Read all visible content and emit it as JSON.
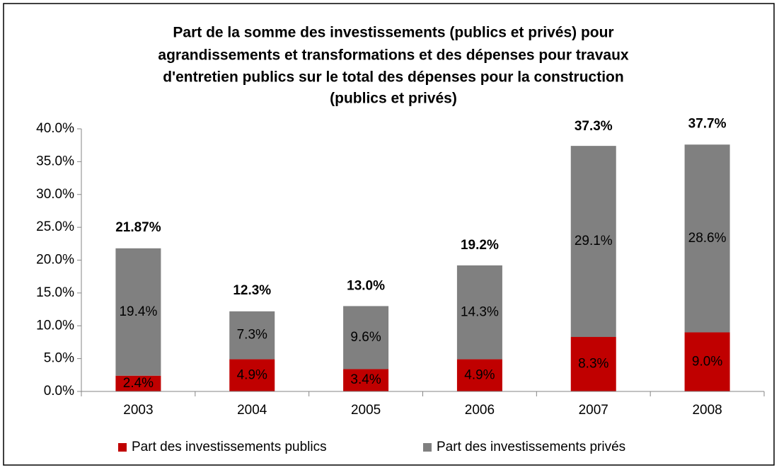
{
  "chart_data": {
    "type": "stacked_bar",
    "title": [
      "Part de la somme des investissements (publics et privés) pour",
      "agrandissements et transformations et des dépenses pour travaux",
      "d'entretien publics sur le total des dépenses pour la construction",
      "(publics et privés)"
    ],
    "categories": [
      "2003",
      "2004",
      "2005",
      "2006",
      "2007",
      "2008"
    ],
    "series": [
      {
        "name": "Part des investissements publics",
        "color": "#c00000",
        "values": [
          2.4,
          4.9,
          3.4,
          4.9,
          8.3,
          9.0
        ],
        "value_labels": [
          "2.4%",
          "4.9%",
          "3.4%",
          "4.9%",
          "8.3%",
          "9.0%"
        ]
      },
      {
        "name": "Part des investissements privés",
        "color": "#808080",
        "values": [
          19.4,
          7.3,
          9.6,
          14.3,
          29.1,
          28.6
        ],
        "value_labels": [
          "19.4%",
          "7.3%",
          "9.6%",
          "14.3%",
          "29.1%",
          "28.6%"
        ]
      }
    ],
    "totals": [
      21.87,
      12.3,
      13.0,
      19.2,
      37.3,
      37.7
    ],
    "total_labels": [
      "21.87%",
      "12.3%",
      "13.0%",
      "19.2%",
      "37.3%",
      "37.7%"
    ],
    "ylim": [
      0,
      40
    ],
    "yticks": [
      {
        "value": 0,
        "label": "0.0%"
      },
      {
        "value": 5,
        "label": "5.0%"
      },
      {
        "value": 10,
        "label": "10.0%"
      },
      {
        "value": 15,
        "label": "15.0%"
      },
      {
        "value": 20,
        "label": "20.0%"
      },
      {
        "value": 25,
        "label": "25.0%"
      },
      {
        "value": 30,
        "label": "30.0%"
      },
      {
        "value": 35,
        "label": "35.0%"
      },
      {
        "value": 40,
        "label": "40.0%"
      }
    ],
    "grid": false,
    "legend": "bottom"
  }
}
